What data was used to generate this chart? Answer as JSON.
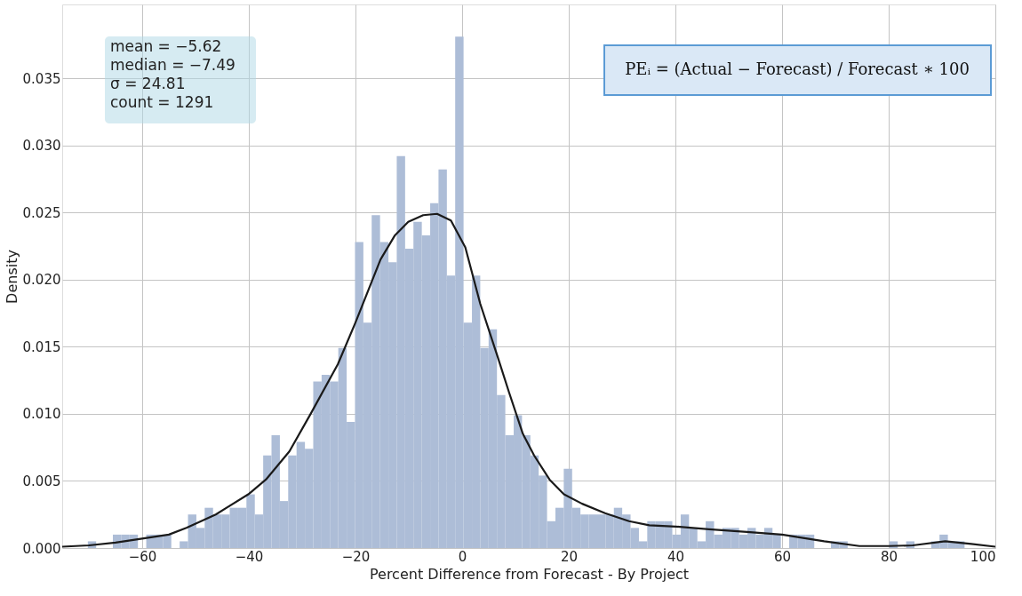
{
  "chart_data": {
    "type": "histogram",
    "xlabel": "Percent Difference from Forecast - By Project",
    "ylabel": "Density",
    "bins": [
      -70.2,
      -68.63,
      -67.07,
      -65.5,
      -63.94,
      -62.37,
      -60.8,
      -59.24,
      -57.67,
      -56.11,
      -54.54,
      -52.97,
      -51.41,
      -49.84,
      -48.28,
      -46.71,
      -45.14,
      -43.58,
      -42.01,
      -40.45,
      -38.88,
      -37.31,
      -35.75,
      -34.18,
      -32.62,
      -31.05,
      -29.48,
      -27.92,
      -26.35,
      -24.79,
      -23.22,
      -21.65,
      -20.09,
      -18.52,
      -16.96,
      -15.39,
      -13.82,
      -12.26,
      -10.69,
      -9.13,
      -7.56,
      -5.99,
      -4.43,
      -2.86,
      -1.3,
      0.27,
      1.84,
      3.4,
      4.97,
      6.53,
      8.1,
      9.67,
      11.23,
      12.8,
      14.36,
      15.93,
      17.5,
      19.06,
      20.63,
      22.19,
      23.76,
      25.33,
      26.89,
      28.46,
      30.02,
      31.59,
      33.16,
      34.72,
      36.29,
      37.85,
      39.42,
      40.99,
      42.55,
      44.12,
      45.68,
      47.25,
      48.82,
      50.38,
      51.95,
      53.51,
      55.08,
      56.65,
      58.21,
      59.78,
      61.34,
      62.91,
      64.48,
      66.04,
      67.61,
      69.17,
      70.74,
      72.31,
      73.87,
      75.44,
      77.0,
      78.57,
      80.14,
      81.7,
      83.27,
      84.83,
      86.4,
      87.97,
      89.53,
      91.1,
      92.66,
      94.23
    ],
    "values": [
      0.0005,
      0,
      0,
      0.001,
      0.001,
      0.001,
      0,
      0.001,
      0.001,
      0.001,
      0,
      0.0005,
      0.0025,
      0.0015,
      0.003,
      0.0025,
      0.0025,
      0.003,
      0.003,
      0.004,
      0.0025,
      0.0069,
      0.0084,
      0.0035,
      0.0069,
      0.0079,
      0.0074,
      0.0124,
      0.0129,
      0.0124,
      0.0149,
      0.0094,
      0.0228,
      0.0168,
      0.0248,
      0.0228,
      0.0213,
      0.0292,
      0.0223,
      0.0243,
      0.0233,
      0.0257,
      0.0282,
      0.0203,
      0.0381,
      0.0168,
      0.0203,
      0.0149,
      0.0163,
      0.0114,
      0.0084,
      0.0099,
      0.0084,
      0.0069,
      0.0054,
      0.002,
      0.003,
      0.0059,
      0.003,
      0.0025,
      0.0025,
      0.0025,
      0.0025,
      0.003,
      0.0025,
      0.0015,
      0.0005,
      0.002,
      0.002,
      0.002,
      0.001,
      0.0025,
      0.0015,
      0.0005,
      0.002,
      0.001,
      0.0015,
      0.0015,
      0.001,
      0.0015,
      0.001,
      0.0015,
      0.001,
      0,
      0.001,
      0.001,
      0.001,
      0,
      0,
      0.0005,
      0.0005,
      0,
      0,
      0,
      0,
      0,
      0.0005,
      0,
      0.0005,
      0,
      0,
      0.0005,
      0.001,
      0.0005,
      0.0005
    ],
    "color": "#adbdd7",
    "series": [
      {
        "type": "line",
        "color": "#1a1a1a",
        "x": [
          -75,
          -70,
          -65,
          -60,
          -55,
          -51.7,
          -46.2,
          -40.1,
          -36.8,
          -32.4,
          -28.4,
          -23.3,
          -20,
          -15.3,
          -12.6,
          -10.1,
          -7.3,
          -4.7,
          -2.1,
          0.6,
          3.4,
          6.7,
          8.8,
          11.4,
          13.5,
          16.4,
          19.1,
          22.5,
          26.8,
          31.3,
          35.1,
          40.1,
          46.3,
          53.4,
          60,
          67.9,
          74.5,
          80,
          84.5,
          90.6,
          95.5,
          100
        ],
        "values": [
          0.0001,
          0.0002,
          0.0004,
          0.0007,
          0.001,
          0.0015,
          0.0025,
          0.004,
          0.0051,
          0.0072,
          0.01,
          0.0137,
          0.0168,
          0.0215,
          0.0233,
          0.0243,
          0.0248,
          0.0249,
          0.0244,
          0.0224,
          0.0182,
          0.0142,
          0.0116,
          0.0085,
          0.0069,
          0.0051,
          0.004,
          0.0033,
          0.0026,
          0.002,
          0.0017,
          0.0016,
          0.0014,
          0.0012,
          0.001,
          0.0005,
          0.00015,
          0.00015,
          0.0002,
          0.0005,
          0.0003,
          0.0001
        ]
      }
    ],
    "xlim": [
      -75,
      100
    ],
    "xticks": [
      {
        "value": -60,
        "label": "−60"
      },
      {
        "value": -40,
        "label": "−40"
      },
      {
        "value": -20,
        "label": "−20"
      },
      0,
      20,
      40,
      60,
      80,
      100
    ],
    "ylim": [
      0,
      0.0405
    ],
    "yticks": [
      {
        "value": 0,
        "label": "0.000"
      },
      {
        "value": 0.005,
        "label": "0.005"
      },
      {
        "value": 0.01,
        "label": "0.010"
      },
      {
        "value": 0.015,
        "label": "0.015"
      },
      {
        "value": 0.02,
        "label": "0.020"
      },
      {
        "value": 0.025,
        "label": "0.025"
      },
      {
        "value": 0.03,
        "label": "0.030"
      },
      {
        "value": 0.035,
        "label": "0.035"
      }
    ],
    "grid": true,
    "annotations": [
      "mean = −5.62",
      "median = −7.49",
      "σ = 24.81",
      "count = 1291",
      "PEᵢ = (Actual − Forecast) / Forecast ∗ 100"
    ]
  }
}
